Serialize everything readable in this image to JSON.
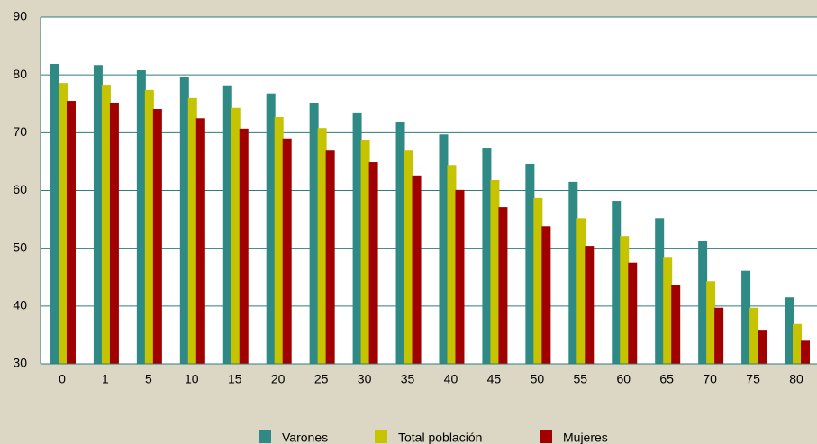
{
  "chart_data": {
    "type": "bar",
    "categories": [
      "0",
      "1",
      "5",
      "10",
      "15",
      "20",
      "25",
      "30",
      "35",
      "40",
      "45",
      "50",
      "55",
      "60",
      "65",
      "70",
      "75",
      "80"
    ],
    "series": [
      {
        "name": "Varones",
        "color": "#2f8a86",
        "values": [
          81.9,
          81.7,
          80.8,
          79.6,
          78.2,
          76.8,
          75.2,
          73.5,
          71.8,
          69.7,
          67.4,
          64.6,
          61.5,
          58.2,
          55.2,
          51.2,
          46.1,
          41.5
        ]
      },
      {
        "name": "Total población",
        "color": "#c6c400",
        "values": [
          78.6,
          78.3,
          77.4,
          76.0,
          74.3,
          72.7,
          70.8,
          68.8,
          66.9,
          64.4,
          61.8,
          58.7,
          55.2,
          52.1,
          48.5,
          44.3,
          39.7,
          36.9
        ]
      },
      {
        "name": "Mujeres",
        "color": "#a00000",
        "values": [
          75.5,
          75.2,
          74.1,
          72.5,
          70.7,
          69.0,
          66.9,
          64.9,
          62.6,
          60.1,
          57.1,
          53.8,
          50.4,
          47.5,
          43.7,
          39.7,
          35.9,
          34.0
        ]
      }
    ],
    "ylim": [
      30,
      90
    ],
    "yticks": [
      30,
      40,
      50,
      60,
      70,
      80,
      90
    ],
    "grid": true,
    "legend": "bottom"
  }
}
